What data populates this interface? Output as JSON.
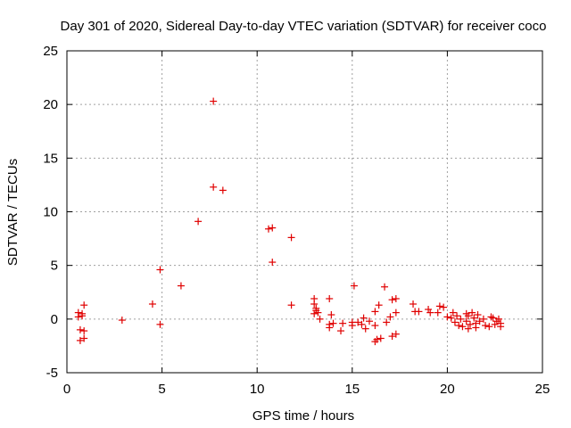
{
  "chart_data": {
    "type": "scatter",
    "title": "Day 301 of 2020, Sidereal Day-to-day VTEC variation (SDTVAR) for receiver coco",
    "xlabel": "GPS time / hours",
    "ylabel": "SDTVAR / TECUs",
    "xlim": [
      0,
      25
    ],
    "ylim": [
      -5,
      25
    ],
    "xticks": [
      "0",
      "5",
      "10",
      "15",
      "20",
      "25"
    ],
    "yticks": [
      "-5",
      "0",
      "5",
      "10",
      "15",
      "20",
      "25"
    ],
    "grid": true,
    "marker": "+",
    "color": "#e00000",
    "series": [
      {
        "name": "SDTVAR",
        "points": [
          [
            0.6,
            0.6
          ],
          [
            0.6,
            0.2
          ],
          [
            0.7,
            -1.0
          ],
          [
            0.7,
            -2.0
          ],
          [
            0.8,
            0.3
          ],
          [
            0.9,
            -1.8
          ],
          [
            0.9,
            1.3
          ],
          [
            0.9,
            -1.1
          ],
          [
            0.8,
            0.5
          ],
          [
            2.9,
            -0.1
          ],
          [
            4.5,
            1.4
          ],
          [
            4.9,
            4.6
          ],
          [
            4.9,
            -0.5
          ],
          [
            6.0,
            3.1
          ],
          [
            6.9,
            9.1
          ],
          [
            7.7,
            20.3
          ],
          [
            7.7,
            12.3
          ],
          [
            8.2,
            12.0
          ],
          [
            10.6,
            8.4
          ],
          [
            10.8,
            8.5
          ],
          [
            10.8,
            5.3
          ],
          [
            11.8,
            7.6
          ],
          [
            11.8,
            1.3
          ],
          [
            13.0,
            1.9
          ],
          [
            13.0,
            1.4
          ],
          [
            13.1,
            0.8
          ],
          [
            13.0,
            0.5
          ],
          [
            13.2,
            0.6
          ],
          [
            13.3,
            0.0
          ],
          [
            13.1,
            1.0
          ],
          [
            13.8,
            1.9
          ],
          [
            13.9,
            0.4
          ],
          [
            13.8,
            -0.5
          ],
          [
            13.8,
            -0.8
          ],
          [
            14.0,
            -0.4
          ],
          [
            14.4,
            -1.1
          ],
          [
            14.5,
            -0.4
          ],
          [
            15.0,
            -0.3
          ],
          [
            15.1,
            3.1
          ],
          [
            15.0,
            -0.6
          ],
          [
            15.3,
            -0.3
          ],
          [
            15.5,
            -0.5
          ],
          [
            15.6,
            0.1
          ],
          [
            15.7,
            -0.9
          ],
          [
            15.9,
            -0.2
          ],
          [
            16.2,
            -0.6
          ],
          [
            16.2,
            0.7
          ],
          [
            16.2,
            -2.1
          ],
          [
            16.3,
            -1.9
          ],
          [
            16.4,
            1.3
          ],
          [
            16.5,
            -1.8
          ],
          [
            16.7,
            3.0
          ],
          [
            16.8,
            -0.3
          ],
          [
            17.0,
            0.2
          ],
          [
            17.1,
            -1.6
          ],
          [
            17.1,
            1.8
          ],
          [
            17.3,
            1.9
          ],
          [
            17.3,
            0.6
          ],
          [
            17.3,
            -1.4
          ],
          [
            18.2,
            1.4
          ],
          [
            18.3,
            0.7
          ],
          [
            18.5,
            0.7
          ],
          [
            19.0,
            0.9
          ],
          [
            19.1,
            0.6
          ],
          [
            19.5,
            0.6
          ],
          [
            19.6,
            1.2
          ],
          [
            19.8,
            1.1
          ],
          [
            20.0,
            0.2
          ],
          [
            20.2,
            0.1
          ],
          [
            20.3,
            0.6
          ],
          [
            20.4,
            -0.3
          ],
          [
            20.5,
            0.3
          ],
          [
            20.6,
            -0.6
          ],
          [
            20.7,
            0.0
          ],
          [
            20.8,
            -0.7
          ],
          [
            21.0,
            0.5
          ],
          [
            21.0,
            -0.2
          ],
          [
            21.1,
            0.3
          ],
          [
            21.1,
            -0.9
          ],
          [
            21.2,
            -0.5
          ],
          [
            21.3,
            0.6
          ],
          [
            21.4,
            0.1
          ],
          [
            21.5,
            -0.4
          ],
          [
            21.5,
            -0.8
          ],
          [
            21.6,
            0.4
          ],
          [
            21.7,
            -0.2
          ],
          [
            21.9,
            0.0
          ],
          [
            22.0,
            -0.6
          ],
          [
            22.2,
            -0.7
          ],
          [
            22.3,
            0.2
          ],
          [
            22.4,
            0.1
          ],
          [
            22.5,
            -0.5
          ],
          [
            22.6,
            -0.2
          ],
          [
            22.7,
            0.0
          ],
          [
            22.8,
            -0.7
          ],
          [
            22.8,
            -0.4
          ]
        ]
      }
    ]
  }
}
